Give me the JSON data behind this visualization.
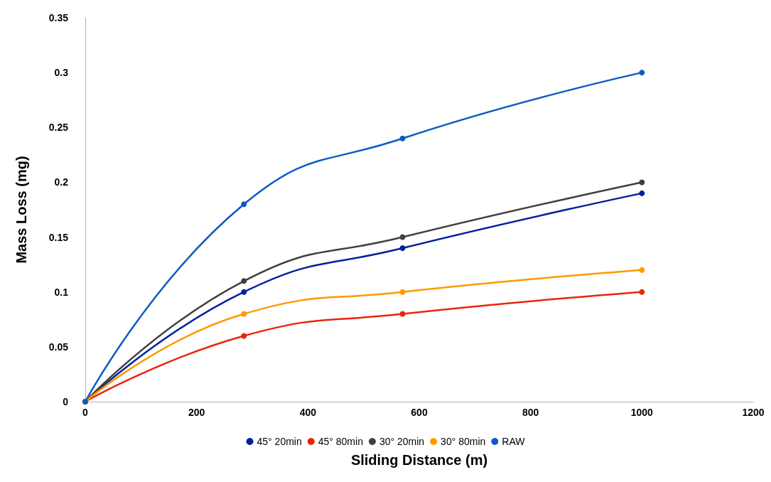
{
  "chart_data": {
    "type": "line",
    "xlabel": "Sliding Distance (m)",
    "ylabel": "Mass Loss (mg)",
    "x": [
      0,
      285,
      570,
      1000
    ],
    "series": [
      {
        "name": "45° 20min",
        "color": "#00209f",
        "values": [
          0,
          0.1,
          0.14,
          0.19
        ]
      },
      {
        "name": "45° 80min",
        "color": "#e8260c",
        "values": [
          0,
          0.06,
          0.08,
          0.1
        ]
      },
      {
        "name": "30° 20min",
        "color": "#404040",
        "values": [
          0,
          0.11,
          0.15,
          0.2
        ]
      },
      {
        "name": "30° 80min",
        "color": "#ff9900",
        "values": [
          0,
          0.08,
          0.1,
          0.12
        ]
      },
      {
        "name": "RAW",
        "color": "#0a5bc4",
        "values": [
          0,
          0.18,
          0.24,
          0.3
        ]
      }
    ],
    "xlim": [
      0,
      1200
    ],
    "xticks": [
      0,
      200,
      400,
      600,
      800,
      1000,
      1200
    ],
    "ylim": [
      0,
      0.35
    ],
    "yticks": [
      0,
      0.05,
      0.1,
      0.15,
      0.2,
      0.25,
      0.3,
      0.35
    ],
    "grid": false,
    "legend": "bottom",
    "marker": "circle",
    "line_style": "solid"
  }
}
